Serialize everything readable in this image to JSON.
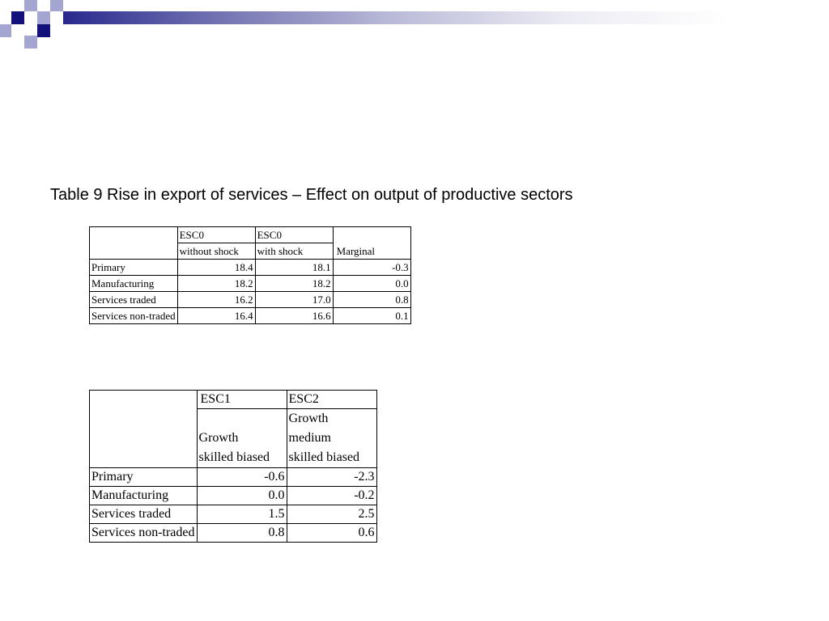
{
  "slide": {
    "title": "Table 9 Rise in export of services – Effect on output of productive sectors"
  },
  "colors": {
    "header_dark": "#12127a",
    "header_light": "#a5a5d2"
  },
  "table1": {
    "headers": {
      "col1_line1": "ESC0",
      "col1_line2": "without shock",
      "col2_line1": "ESC0",
      "col2_line2": "with shock",
      "col3": "Marginal"
    },
    "rows": [
      {
        "label": "Primary",
        "v1": "18.4",
        "v2": "18.1",
        "v3": "-0.3"
      },
      {
        "label": "Manufacturing",
        "v1": "18.2",
        "v2": "18.2",
        "v3": "0.0"
      },
      {
        "label": "Services traded",
        "v1": "16.2",
        "v2": "17.0",
        "v3": "0.8"
      },
      {
        "label": "Services non-traded",
        "v1": "16.4",
        "v2": "16.6",
        "v3": "0.1"
      }
    ]
  },
  "table2": {
    "headers": {
      "col1_line1": "ESC1",
      "col1_line2": "Growth",
      "col1_line3": "skilled biased",
      "col2_line1": "ESC2",
      "col2_line2": "Growth",
      "col2_line3": "medium",
      "col2_line4": "skilled biased"
    },
    "rows": [
      {
        "label": "Primary",
        "v1": "-0.6",
        "v2": "-2.3"
      },
      {
        "label": "Manufacturing",
        "v1": "0.0",
        "v2": "-0.2"
      },
      {
        "label": "Services traded",
        "v1": "1.5",
        "v2": "2.5"
      },
      {
        "label": "Services non-traded",
        "v1": "0.8",
        "v2": "0.6"
      }
    ]
  }
}
